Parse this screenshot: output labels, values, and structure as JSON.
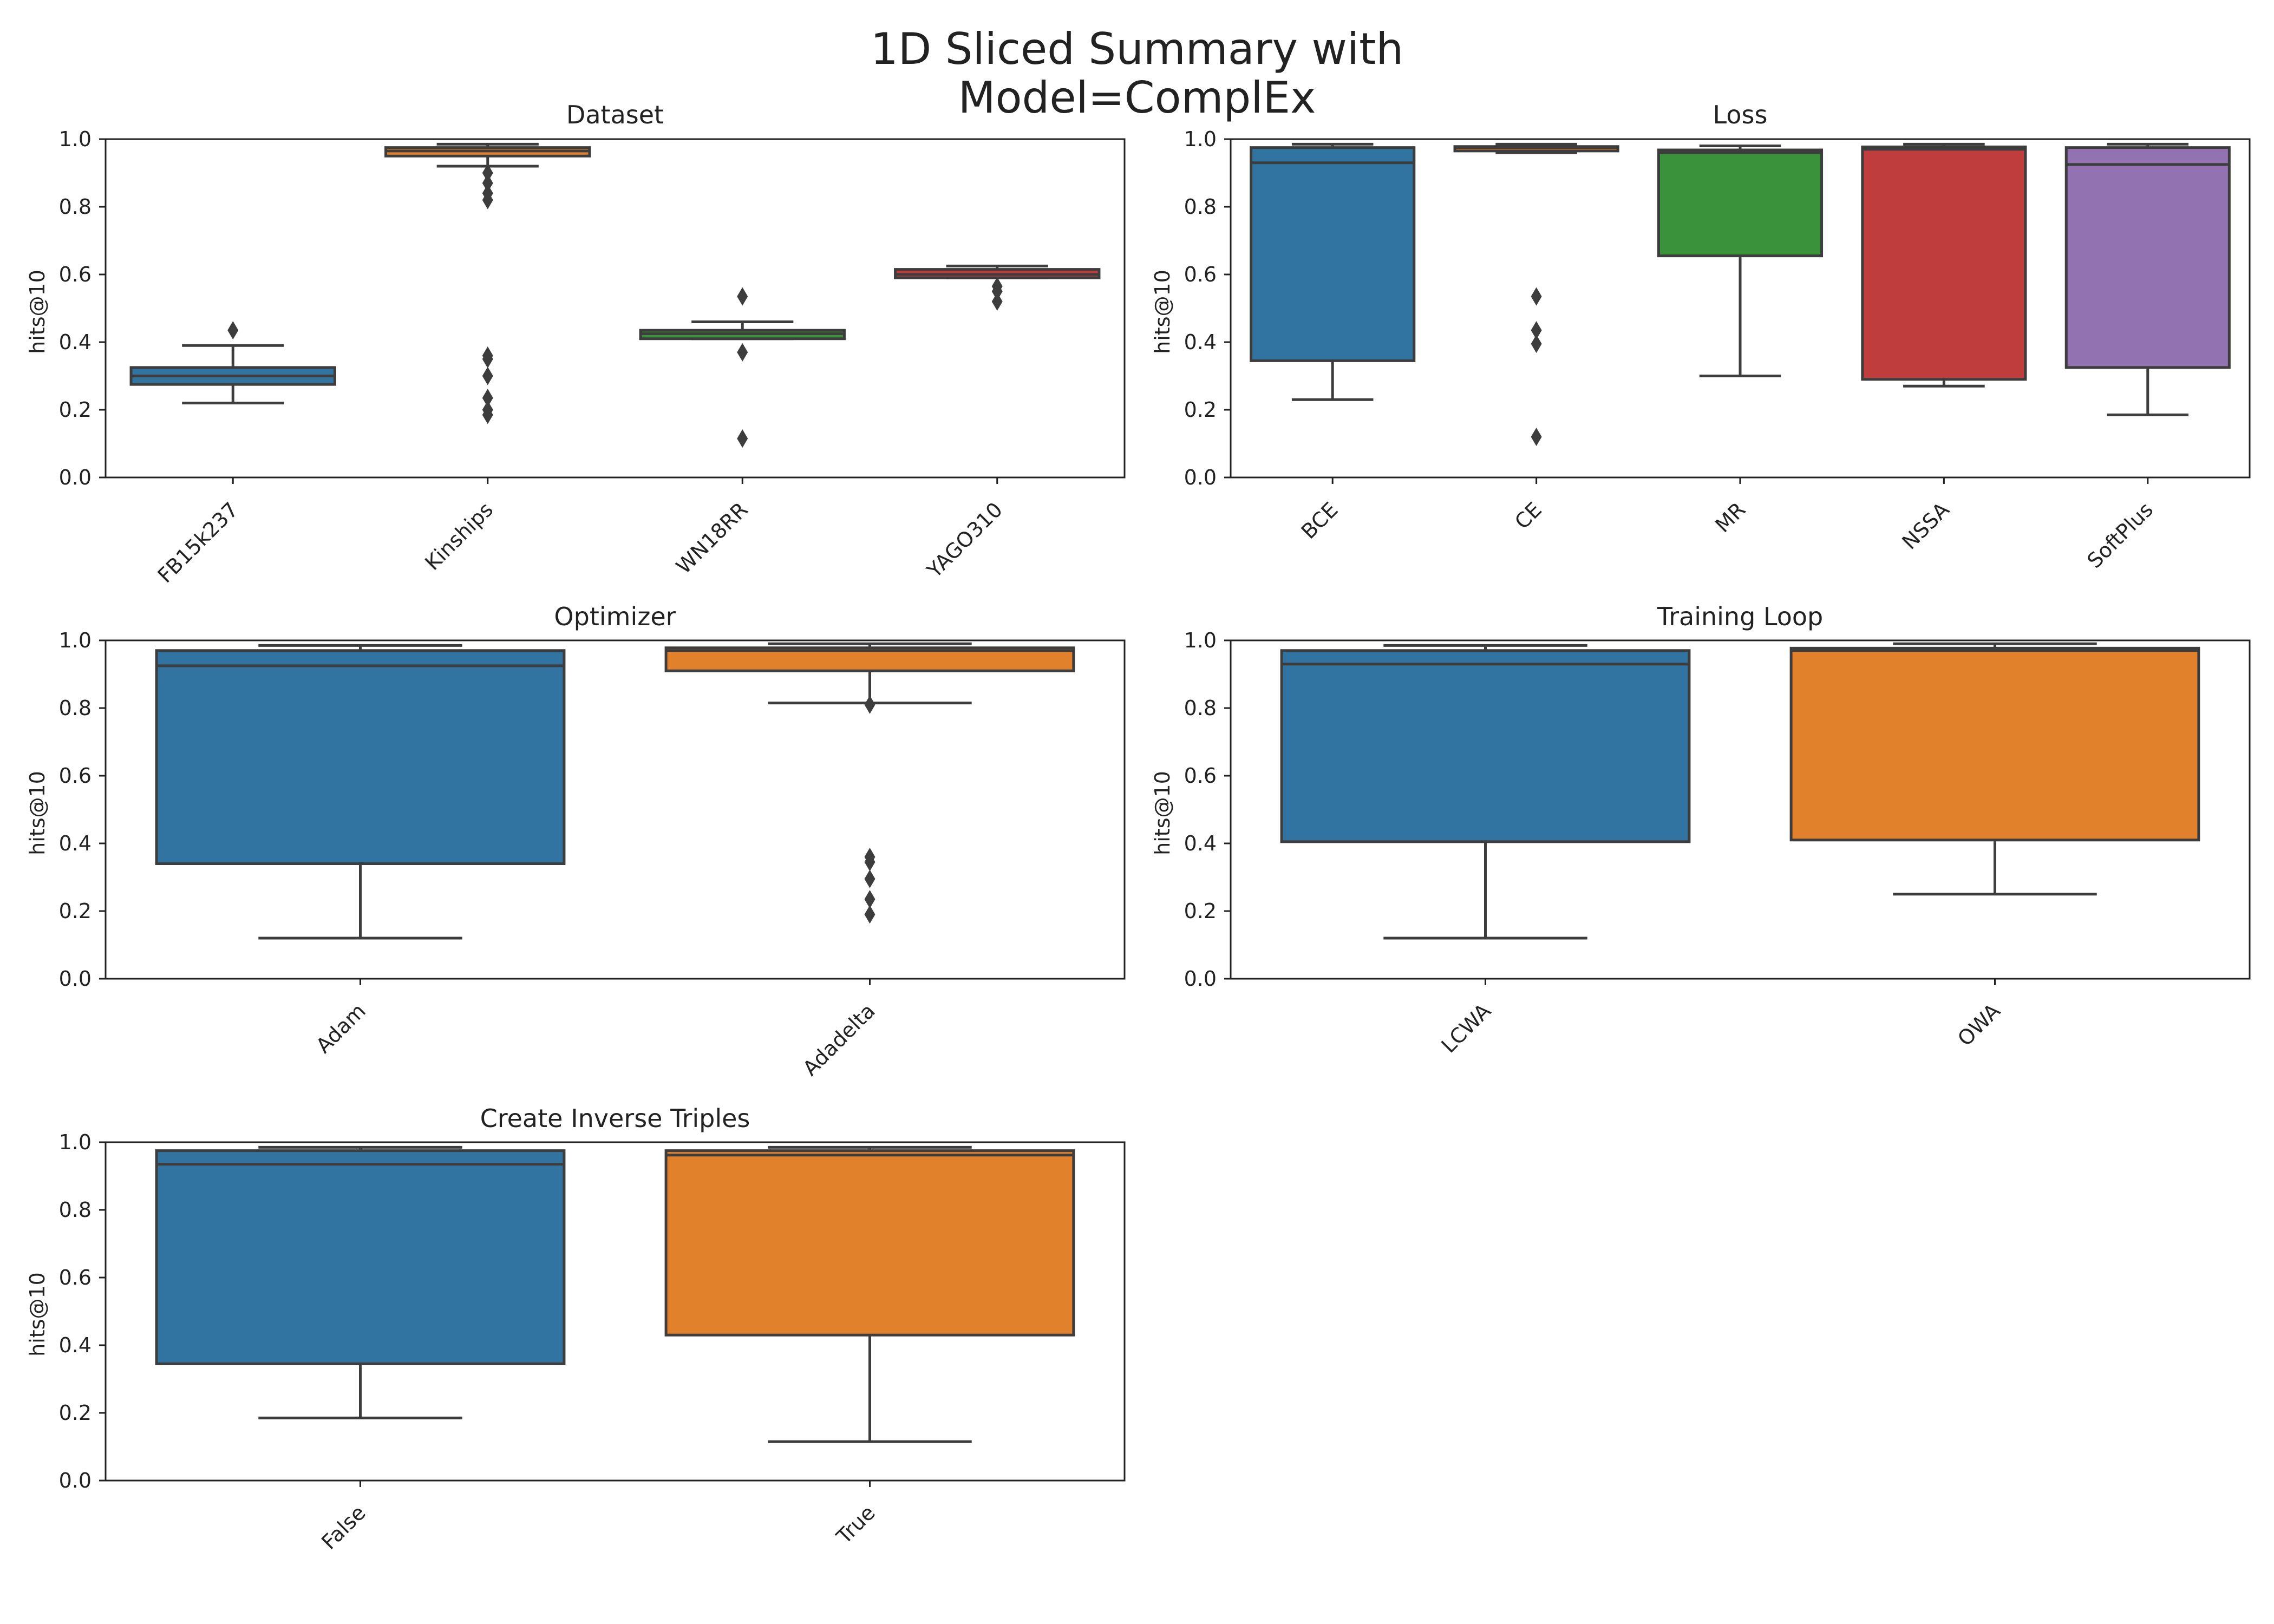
{
  "figure": {
    "title_line1": "1D Sliced Summary with",
    "title_line2": "Model=ComplEx"
  },
  "colors": {
    "blue": "#3274a1",
    "orange": "#e1812c",
    "green": "#3a923a",
    "red": "#c03d3e",
    "purple": "#9372b2",
    "line": "#3d3d3d"
  },
  "chart_data": [
    {
      "type": "box",
      "title": "Dataset",
      "ylabel": "hits@10",
      "ylim": [
        0,
        1
      ],
      "yticks": [
        "0.0",
        "0.2",
        "0.4",
        "0.6",
        "0.8",
        "1.0"
      ],
      "categories": [
        "FB15k237",
        "Kinships",
        "WN18RR",
        "YAGO310"
      ],
      "boxes": [
        {
          "whislo": 0.22,
          "q1": 0.275,
          "med": 0.3,
          "q3": 0.325,
          "whishi": 0.39,
          "fliers": [
            0.435
          ],
          "color": "blue"
        },
        {
          "whislo": 0.92,
          "q1": 0.95,
          "med": 0.965,
          "q3": 0.975,
          "whishi": 0.985,
          "fliers": [
            0.9,
            0.87,
            0.84,
            0.82,
            0.36,
            0.35,
            0.3,
            0.235,
            0.2,
            0.185
          ],
          "color": "orange"
        },
        {
          "whislo": 0.41,
          "q1": 0.41,
          "med": 0.425,
          "q3": 0.435,
          "whishi": 0.46,
          "fliers": [
            0.535,
            0.37,
            0.115
          ],
          "color": "green"
        },
        {
          "whislo": 0.59,
          "q1": 0.59,
          "med": 0.6,
          "q3": 0.615,
          "whishi": 0.625,
          "fliers": [
            0.565,
            0.55,
            0.52
          ],
          "color": "red"
        }
      ]
    },
    {
      "type": "box",
      "title": "Loss",
      "ylabel": "hits@10",
      "ylim": [
        0,
        1
      ],
      "yticks": [
        "0.0",
        "0.2",
        "0.4",
        "0.6",
        "0.8",
        "1.0"
      ],
      "categories": [
        "BCE",
        "CE",
        "MR",
        "NSSA",
        "SoftPlus"
      ],
      "boxes": [
        {
          "whislo": 0.23,
          "q1": 0.345,
          "med": 0.93,
          "q3": 0.975,
          "whishi": 0.985,
          "fliers": [],
          "color": "blue"
        },
        {
          "whislo": 0.96,
          "q1": 0.965,
          "med": 0.975,
          "q3": 0.978,
          "whishi": 0.985,
          "fliers": [
            0.535,
            0.435,
            0.395,
            0.12
          ],
          "color": "orange"
        },
        {
          "whislo": 0.3,
          "q1": 0.655,
          "med": 0.96,
          "q3": 0.968,
          "whishi": 0.98,
          "fliers": [],
          "color": "green"
        },
        {
          "whislo": 0.27,
          "q1": 0.29,
          "med": 0.97,
          "q3": 0.977,
          "whishi": 0.985,
          "fliers": [],
          "color": "red"
        },
        {
          "whislo": 0.185,
          "q1": 0.325,
          "med": 0.925,
          "q3": 0.975,
          "whishi": 0.985,
          "fliers": [],
          "color": "purple"
        }
      ]
    },
    {
      "type": "box",
      "title": "Optimizer",
      "ylabel": "hits@10",
      "ylim": [
        0,
        1
      ],
      "yticks": [
        "0.0",
        "0.2",
        "0.4",
        "0.6",
        "0.8",
        "1.0"
      ],
      "categories": [
        "Adam",
        "Adadelta"
      ],
      "boxes": [
        {
          "whislo": 0.12,
          "q1": 0.34,
          "med": 0.925,
          "q3": 0.97,
          "whishi": 0.985,
          "fliers": [],
          "color": "blue"
        },
        {
          "whislo": 0.815,
          "q1": 0.91,
          "med": 0.97,
          "q3": 0.978,
          "whishi": 0.99,
          "fliers": [
            0.81,
            0.36,
            0.345,
            0.295,
            0.235,
            0.19
          ],
          "color": "orange"
        }
      ]
    },
    {
      "type": "box",
      "title": "Training Loop",
      "ylabel": "hits@10",
      "ylim": [
        0,
        1
      ],
      "yticks": [
        "0.0",
        "0.2",
        "0.4",
        "0.6",
        "0.8",
        "1.0"
      ],
      "categories": [
        "LCWA",
        "OWA"
      ],
      "boxes": [
        {
          "whislo": 0.12,
          "q1": 0.405,
          "med": 0.93,
          "q3": 0.97,
          "whishi": 0.985,
          "fliers": [],
          "color": "blue"
        },
        {
          "whislo": 0.25,
          "q1": 0.41,
          "med": 0.97,
          "q3": 0.977,
          "whishi": 0.99,
          "fliers": [],
          "color": "orange"
        }
      ]
    },
    {
      "type": "box",
      "title": "Create Inverse Triples",
      "ylabel": "hits@10",
      "ylim": [
        0,
        1
      ],
      "yticks": [
        "0.0",
        "0.2",
        "0.4",
        "0.6",
        "0.8",
        "1.0"
      ],
      "categories": [
        "False",
        "True"
      ],
      "boxes": [
        {
          "whislo": 0.185,
          "q1": 0.345,
          "med": 0.935,
          "q3": 0.975,
          "whishi": 0.985,
          "fliers": [],
          "color": "blue"
        },
        {
          "whislo": 0.115,
          "q1": 0.43,
          "med": 0.962,
          "q3": 0.975,
          "whishi": 0.985,
          "fliers": [],
          "color": "orange"
        }
      ]
    }
  ]
}
